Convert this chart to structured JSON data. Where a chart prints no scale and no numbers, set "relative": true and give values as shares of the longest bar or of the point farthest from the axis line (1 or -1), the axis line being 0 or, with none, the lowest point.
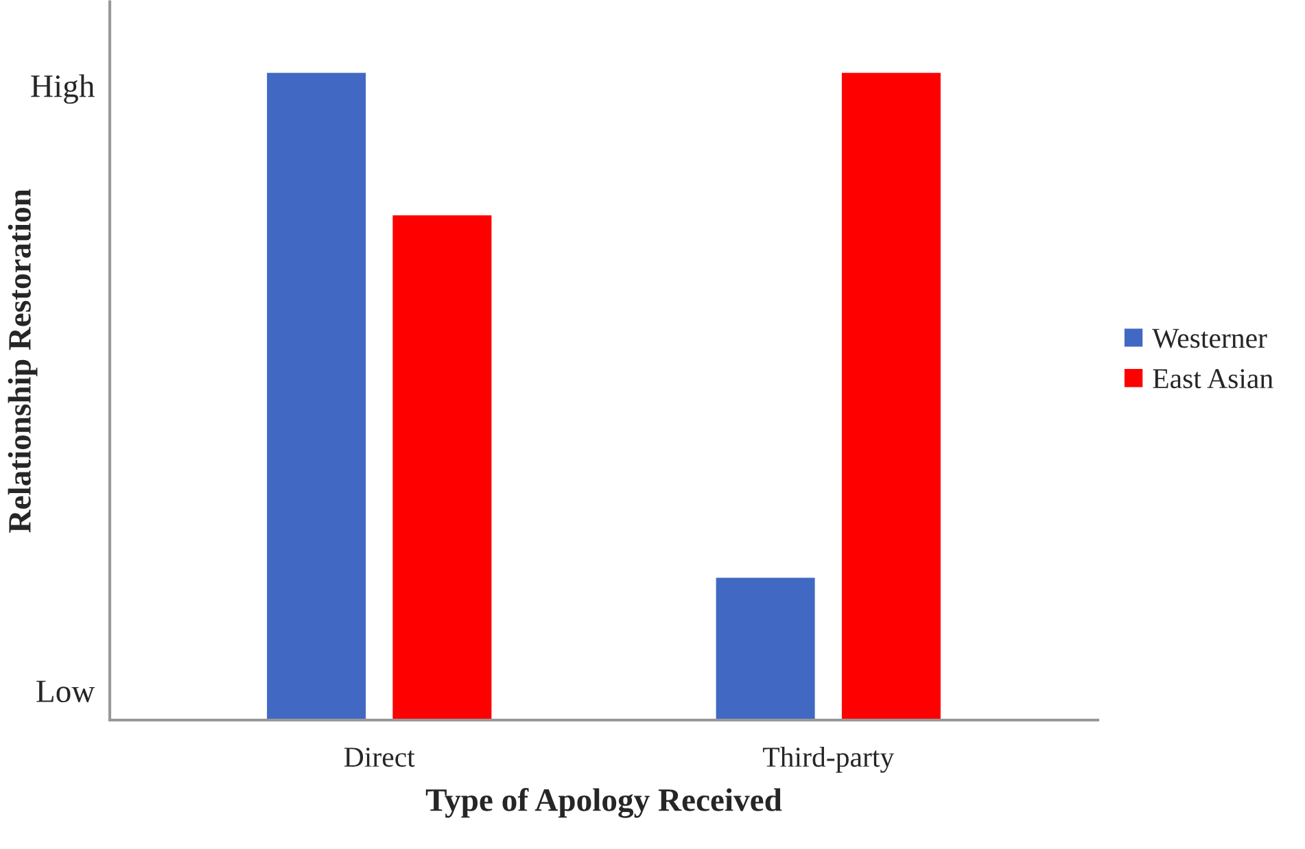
{
  "chart_data": {
    "type": "bar",
    "relative": true,
    "xlabel": "Type of Apology Received",
    "ylabel": "Relationship Restoration",
    "categories": [
      "Direct",
      "Third-party"
    ],
    "series": [
      {
        "name": "Westerner",
        "color": "#4169c4",
        "values": [
          1.0,
          0.22
        ]
      },
      {
        "name": "East Asian",
        "color": "#ff0000",
        "values": [
          0.78,
          1.0
        ]
      }
    ],
    "annotations": [
      "High",
      "Low"
    ],
    "legend": "right",
    "grid": false
  }
}
